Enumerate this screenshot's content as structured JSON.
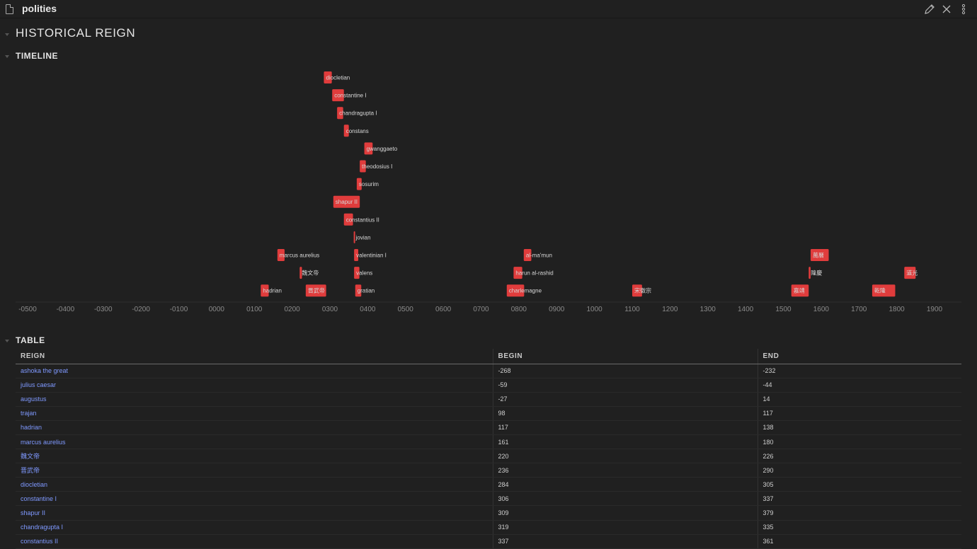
{
  "window": {
    "title": "polities"
  },
  "headings": {
    "main": "HISTORICAL REIGN",
    "timeline": "TIMELINE",
    "table": "TABLE"
  },
  "colors": {
    "bar": "#e03c3c",
    "link": "#7f99ff",
    "background": "#202020"
  },
  "icons": [
    "file-icon",
    "pencil-icon",
    "close-icon",
    "more-vertical-icon"
  ],
  "timeline": {
    "axis_min": -520,
    "axis_max": 1960,
    "ticks": [
      "-0500",
      "-0400",
      "-0300",
      "-0200",
      "-0100",
      "0000",
      "0100",
      "0200",
      "0300",
      "0400",
      "0500",
      "0600",
      "0700",
      "0800",
      "0900",
      "1000",
      "1100",
      "1200",
      "1300",
      "1400",
      "1500",
      "1600",
      "1700",
      "1800",
      "1900"
    ],
    "tick_values": [
      -500,
      -400,
      -300,
      -200,
      -100,
      0,
      100,
      200,
      300,
      400,
      500,
      600,
      700,
      800,
      900,
      1000,
      1100,
      1200,
      1300,
      1400,
      1500,
      1600,
      1700,
      1800,
      1900
    ],
    "items": [
      {
        "label": "diocletian",
        "begin": 284,
        "end": 305,
        "row": 0
      },
      {
        "label": "constantine I",
        "begin": 306,
        "end": 337,
        "row": 1
      },
      {
        "label": "chandragupta I",
        "begin": 319,
        "end": 335,
        "row": 2
      },
      {
        "label": "constans",
        "begin": 337,
        "end": 350,
        "row": 3
      },
      {
        "label": "gwanggaeto",
        "begin": 391,
        "end": 413,
        "row": 4
      },
      {
        "label": "theodosius I",
        "begin": 379,
        "end": 395,
        "row": 5
      },
      {
        "label": "sosurim",
        "begin": 371,
        "end": 384,
        "row": 6
      },
      {
        "label": "shapur II",
        "begin": 309,
        "end": 379,
        "row": 7
      },
      {
        "label": "constantius II",
        "begin": 337,
        "end": 361,
        "row": 8
      },
      {
        "label": "jovian",
        "begin": 363,
        "end": 364,
        "row": 9
      },
      {
        "label": "marcus aurelius",
        "begin": 161,
        "end": 180,
        "row": 10
      },
      {
        "label": "valentinian I",
        "begin": 364,
        "end": 375,
        "row": 10
      },
      {
        "label": "al-ma'mun",
        "begin": 813,
        "end": 833,
        "row": 10
      },
      {
        "label": "萬曆",
        "begin": 1572,
        "end": 1620,
        "row": 10
      },
      {
        "label": "魏文帝",
        "begin": 220,
        "end": 226,
        "row": 11
      },
      {
        "label": "valens",
        "begin": 364,
        "end": 378,
        "row": 11
      },
      {
        "label": "harun al-rashid",
        "begin": 786,
        "end": 809,
        "row": 11
      },
      {
        "label": "隆慶",
        "begin": 1567,
        "end": 1572,
        "row": 11
      },
      {
        "label": "道光",
        "begin": 1820,
        "end": 1850,
        "row": 11
      },
      {
        "label": "hadrian",
        "begin": 117,
        "end": 138,
        "row": 12
      },
      {
        "label": "晋武帝",
        "begin": 236,
        "end": 290,
        "row": 12
      },
      {
        "label": "gratian",
        "begin": 367,
        "end": 383,
        "row": 12
      },
      {
        "label": "charlemagne",
        "begin": 768,
        "end": 814,
        "row": 12
      },
      {
        "label": "宋徽宗",
        "begin": 1100,
        "end": 1126,
        "row": 12
      },
      {
        "label": "嘉靖",
        "begin": 1521,
        "end": 1567,
        "row": 12
      },
      {
        "label": "乾隆",
        "begin": 1735,
        "end": 1796,
        "row": 12
      }
    ]
  },
  "table": {
    "columns": [
      "REIGN",
      "BEGIN",
      "END"
    ],
    "rows": [
      [
        "ashoka the great",
        "-268",
        "-232"
      ],
      [
        "julius caesar",
        "-59",
        "-44"
      ],
      [
        "augustus",
        "-27",
        "14"
      ],
      [
        "trajan",
        "98",
        "117"
      ],
      [
        "hadrian",
        "117",
        "138"
      ],
      [
        "marcus aurelius",
        "161",
        "180"
      ],
      [
        "魏文帝",
        "220",
        "226"
      ],
      [
        "晋武帝",
        "236",
        "290"
      ],
      [
        "diocletian",
        "284",
        "305"
      ],
      [
        "constantine I",
        "306",
        "337"
      ],
      [
        "shapur II",
        "309",
        "379"
      ],
      [
        "chandragupta I",
        "319",
        "335"
      ],
      [
        "constantius II",
        "337",
        "361"
      ]
    ]
  }
}
